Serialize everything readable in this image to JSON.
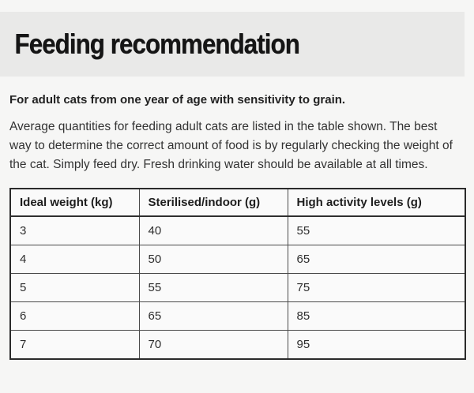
{
  "page": {
    "title": "Feeding recommendation",
    "intro_bold": "For adult cats from one year of age with sensitivity to grain.",
    "description": "Average quantities for feeding adult cats are listed in the table shown. The best way to determine the correct amount of food is by regularly checking the weight of the cat. Simply feed dry. Fresh drinking water should be available at all times."
  },
  "table": {
    "headers": [
      "Ideal weight (kg)",
      "Sterilised/indoor (g)",
      "High activity levels (g)"
    ],
    "rows": [
      [
        "3",
        "40",
        "55"
      ],
      [
        "4",
        "50",
        "65"
      ],
      [
        "5",
        "55",
        "75"
      ],
      [
        "6",
        "65",
        "85"
      ],
      [
        "7",
        "70",
        "95"
      ]
    ]
  },
  "colors": {
    "page_bg": "#f6f6f5",
    "band_bg": "#e9e9e8",
    "cell_bg": "#fafafa",
    "border": "#2b2b2b",
    "text": "#2b2b2b"
  }
}
